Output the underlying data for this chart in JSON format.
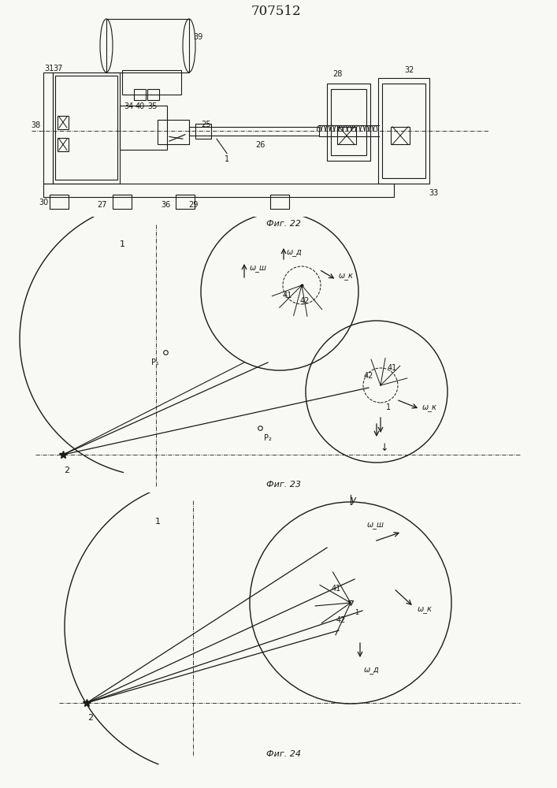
{
  "title": "707512",
  "title_fontsize": 12,
  "bg_color": "#f8f8f4",
  "line_color": "#1a1a1a",
  "fs": 7,
  "fig22_label": "Фиг. 22",
  "fig23_label": "Фиг. 23",
  "fig24_label": "Фиг. 24"
}
